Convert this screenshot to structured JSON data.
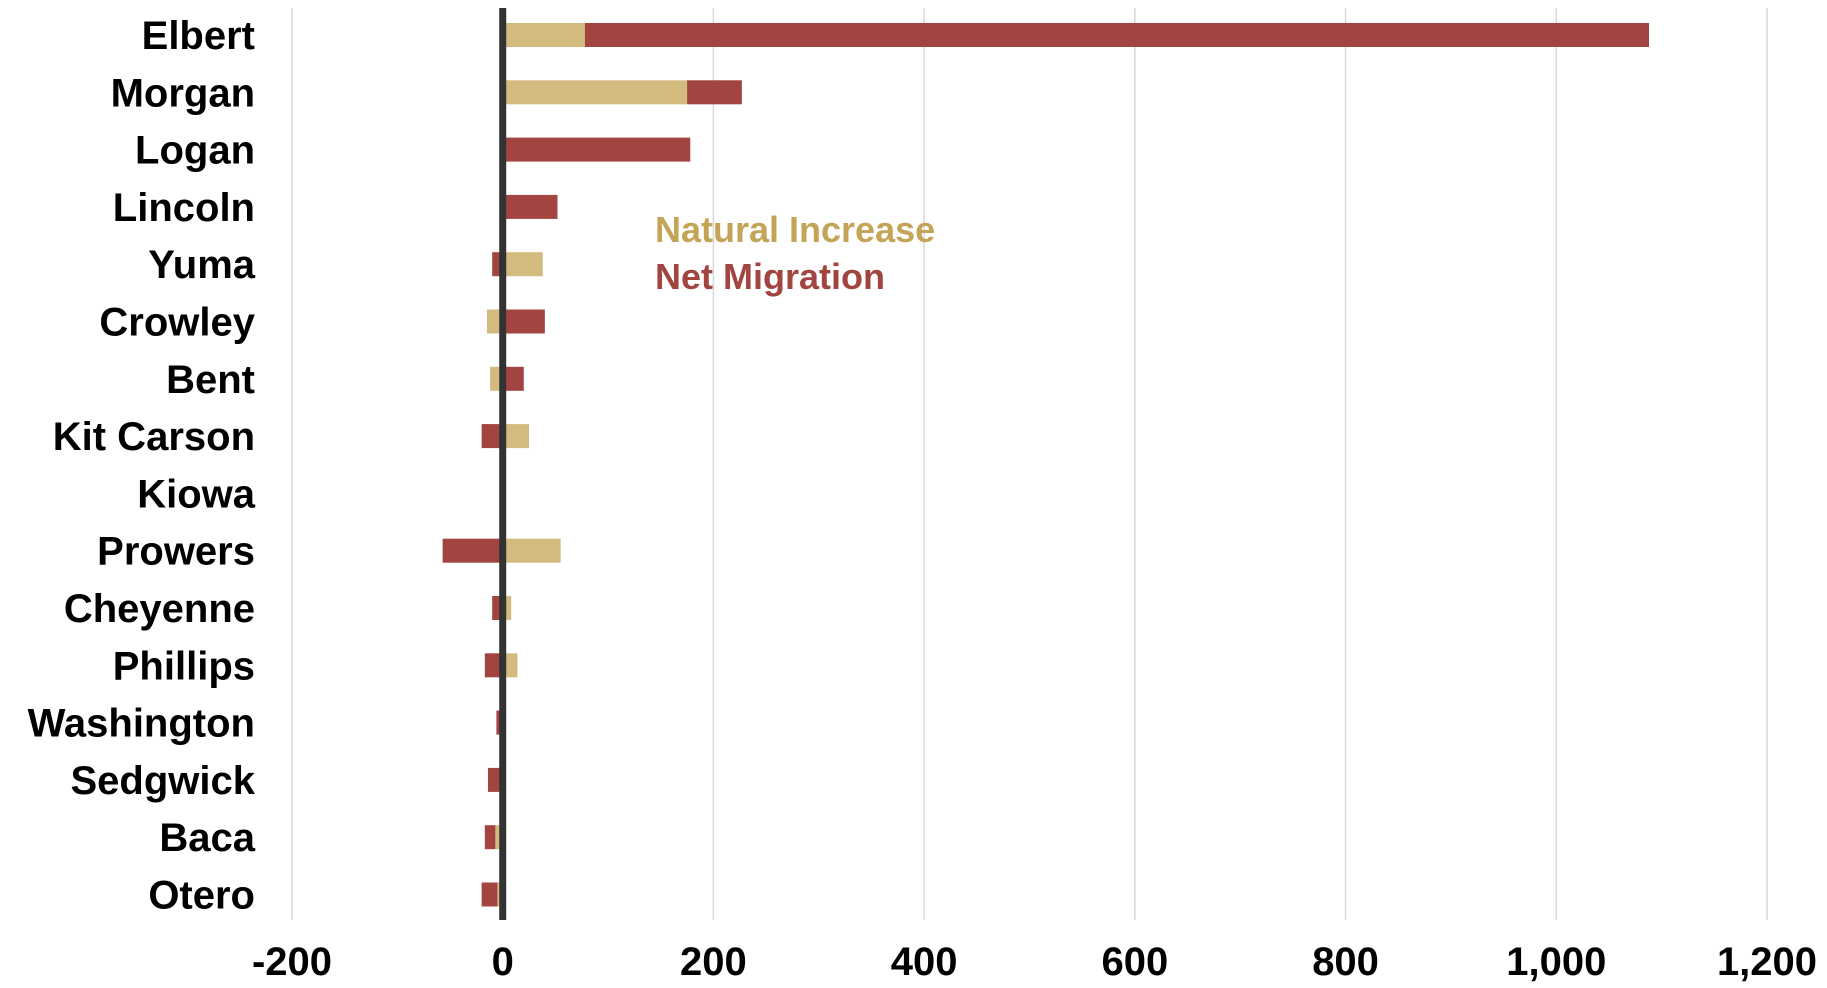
{
  "chart_data": {
    "type": "bar",
    "orientation": "horizontal",
    "stacked": true,
    "title": "",
    "xlabel": "",
    "ylabel": "",
    "categories": [
      "Elbert",
      "Morgan",
      "Logan",
      "Lincoln",
      "Yuma",
      "Crowley",
      "Bent",
      "Kit Carson",
      "Kiowa",
      "Prowers",
      "Cheyenne",
      "Phillips",
      "Washington",
      "Sedgwick",
      "Baca",
      "Otero"
    ],
    "series": [
      {
        "name": "Natural Increase",
        "color": "#d3bb7f",
        "values": [
          78,
          175,
          0,
          0,
          38,
          -15,
          -12,
          25,
          0,
          55,
          8,
          14,
          0,
          0,
          -7,
          -5
        ]
      },
      {
        "name": "Net Migration",
        "color": "#a2443f",
        "values": [
          1010,
          52,
          178,
          52,
          -10,
          40,
          20,
          -20,
          0,
          -57,
          -10,
          -17,
          -6,
          -14,
          -10,
          -15
        ]
      }
    ],
    "xlim": [
      -200,
      1200
    ],
    "xticks": [
      "-200",
      "0",
      "200",
      "400",
      "600",
      "800",
      "1,000",
      "1,200"
    ],
    "xtick_values": [
      -200,
      0,
      200,
      400,
      600,
      800,
      1000,
      1200
    ],
    "grid": "vertical",
    "legend": {
      "placement": "upper-middle",
      "style": "text-only"
    }
  }
}
